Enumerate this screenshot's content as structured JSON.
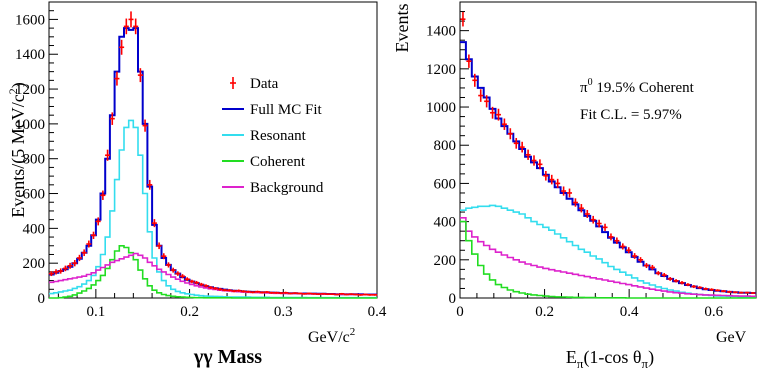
{
  "chart_data": [
    {
      "type": "line",
      "xlabel": "γγ Mass",
      "x_unit": "GeV/c",
      "x_unit_sup": "2",
      "ylabel": "Events/(5 MeV/c",
      "ylabel_sup": "2",
      "ylabel_close": ")",
      "xlim": [
        0.05,
        0.4
      ],
      "ylim": [
        0,
        1700
      ],
      "xticks": [
        {
          "v": 0.1,
          "label": "0.1"
        },
        {
          "v": 0.2,
          "label": "0.2"
        },
        {
          "v": 0.3,
          "label": "0.3"
        },
        {
          "v": 0.4,
          "label": "0.4"
        }
      ],
      "yticks": [
        {
          "v": 0,
          "label": "0"
        },
        {
          "v": 200,
          "label": "200"
        },
        {
          "v": 400,
          "label": "400"
        },
        {
          "v": 600,
          "label": "600"
        },
        {
          "v": 800,
          "label": "800"
        },
        {
          "v": 1000,
          "label": "1000"
        },
        {
          "v": 1200,
          "label": "1200"
        },
        {
          "v": 1400,
          "label": "1400"
        },
        {
          "v": 1600,
          "label": "1600"
        }
      ],
      "legend": [
        {
          "label": "Data",
          "color": "#ff0000",
          "marker": true
        },
        {
          "label": "Full MC Fit",
          "color": "#0000cc"
        },
        {
          "label": "Resonant",
          "color": "#33ddee"
        },
        {
          "label": "Coherent",
          "color": "#22dd22"
        },
        {
          "label": "Background",
          "color": "#dd22cc"
        }
      ],
      "x_edges": [
        0.05,
        0.055,
        0.06,
        0.065,
        0.07,
        0.075,
        0.08,
        0.085,
        0.09,
        0.095,
        0.1,
        0.105,
        0.11,
        0.115,
        0.12,
        0.125,
        0.13,
        0.135,
        0.14,
        0.145,
        0.15,
        0.155,
        0.16,
        0.165,
        0.17,
        0.175,
        0.18,
        0.185,
        0.19,
        0.195,
        0.2,
        0.205,
        0.21,
        0.215,
        0.22,
        0.225,
        0.23,
        0.235,
        0.24,
        0.245,
        0.25,
        0.255,
        0.26,
        0.265,
        0.27,
        0.275,
        0.28,
        0.285,
        0.29,
        0.295,
        0.3,
        0.305,
        0.31,
        0.315,
        0.32,
        0.325,
        0.33,
        0.335,
        0.34,
        0.345,
        0.35,
        0.355,
        0.36,
        0.365,
        0.37,
        0.375,
        0.38,
        0.385,
        0.39,
        0.395,
        0.4
      ],
      "series": [
        {
          "name": "Full MC Fit",
          "color": "#0000cc",
          "values": [
            135,
            145,
            155,
            165,
            180,
            200,
            225,
            260,
            300,
            360,
            450,
            600,
            800,
            1050,
            1300,
            1500,
            1550,
            1540,
            1550,
            1300,
            1000,
            640,
            420,
            300,
            230,
            190,
            160,
            140,
            120,
            105,
            95,
            85,
            75,
            68,
            62,
            56,
            52,
            48,
            44,
            42,
            40,
            38,
            36,
            35,
            34,
            33,
            32,
            31,
            30,
            29,
            28,
            27,
            27,
            26,
            26,
            25,
            25,
            24,
            24,
            23,
            23,
            22,
            22,
            22,
            21,
            21,
            21,
            20,
            20,
            20
          ]
        },
        {
          "name": "Resonant",
          "color": "#33ddee",
          "values": [
            25,
            30,
            35,
            40,
            45,
            55,
            65,
            80,
            100,
            130,
            180,
            250,
            350,
            500,
            680,
            850,
            980,
            1020,
            980,
            820,
            600,
            380,
            230,
            150,
            100,
            70,
            50,
            38,
            30,
            24,
            20,
            16,
            13,
            11,
            10,
            9,
            8,
            7,
            6,
            6,
            5,
            5,
            5,
            4,
            4,
            4,
            4,
            3,
            3,
            3,
            3,
            3,
            3,
            3,
            3,
            2,
            2,
            2,
            2,
            2,
            2,
            2,
            2,
            2,
            2,
            2,
            2,
            2,
            2,
            2
          ]
        },
        {
          "name": "Coherent",
          "color": "#22dd22",
          "values": [
            0,
            0,
            2,
            5,
            10,
            18,
            28,
            40,
            55,
            75,
            100,
            130,
            170,
            220,
            270,
            300,
            290,
            260,
            220,
            160,
            110,
            70,
            45,
            30,
            20,
            14,
            10,
            7,
            5,
            4,
            3,
            2,
            2,
            1,
            1,
            1,
            1,
            1,
            1,
            0,
            0,
            0,
            0,
            0,
            0,
            0,
            0,
            0,
            0,
            0,
            0,
            0,
            0,
            0,
            0,
            0,
            0,
            0,
            0,
            0,
            0,
            0,
            0,
            0,
            0,
            0,
            0,
            0,
            0,
            0
          ]
        },
        {
          "name": "Background",
          "color": "#dd22cc",
          "values": [
            90,
            95,
            100,
            105,
            110,
            115,
            120,
            125,
            135,
            145,
            160,
            175,
            190,
            205,
            215,
            225,
            235,
            245,
            255,
            245,
            230,
            205,
            185,
            165,
            150,
            135,
            120,
            108,
            96,
            86,
            78,
            70,
            64,
            58,
            53,
            49,
            45,
            42,
            40,
            38,
            36,
            34,
            33,
            32,
            31,
            30,
            29,
            28,
            27,
            27,
            26,
            26,
            25,
            25,
            24,
            24,
            23,
            23,
            22,
            22,
            22,
            21,
            21,
            21,
            20,
            20,
            20,
            19,
            19,
            19
          ]
        }
      ],
      "data_points": {
        "name": "Data",
        "color": "#ff0000",
        "x": [
          0.0525,
          0.0575,
          0.0625,
          0.0675,
          0.0725,
          0.0775,
          0.0825,
          0.0875,
          0.0925,
          0.0975,
          0.1025,
          0.1075,
          0.1125,
          0.1175,
          0.1225,
          0.1275,
          0.1325,
          0.1375,
          0.1425,
          0.1475,
          0.1525,
          0.1575,
          0.1625,
          0.1675,
          0.1725,
          0.1775,
          0.1825,
          0.1875,
          0.1925,
          0.1975,
          0.2025,
          0.2075,
          0.2125,
          0.2175,
          0.2225,
          0.2275,
          0.2325,
          0.2375,
          0.2425,
          0.2475,
          0.2525,
          0.2575,
          0.2625,
          0.2675,
          0.2725,
          0.2775,
          0.2825,
          0.2875,
          0.2925,
          0.2975,
          0.3025,
          0.3075,
          0.3125,
          0.3175,
          0.3225,
          0.3275,
          0.3325,
          0.3375,
          0.3425,
          0.3475,
          0.3525,
          0.3575,
          0.3625,
          0.3675,
          0.3725,
          0.3775,
          0.3825,
          0.3875,
          0.3925,
          0.3975
        ],
        "y": [
          140,
          150,
          155,
          170,
          185,
          200,
          230,
          260,
          310,
          360,
          440,
          590,
          820,
          1030,
          1260,
          1440,
          1560,
          1600,
          1560,
          1280,
          990,
          650,
          430,
          300,
          240,
          190,
          160,
          140,
          125,
          108,
          95,
          88,
          78,
          70,
          60,
          55,
          50,
          45,
          44,
          40,
          42,
          38,
          36,
          33,
          36,
          32,
          34,
          30,
          30,
          28,
          30,
          26,
          28,
          26,
          24,
          26,
          24,
          22,
          24,
          22,
          22,
          20,
          24,
          20,
          22,
          20,
          18,
          20,
          18,
          18
        ],
        "err": [
          14,
          15,
          15,
          16,
          17,
          18,
          18,
          19,
          20,
          21,
          23,
          27,
          32,
          36,
          40,
          43,
          45,
          46,
          45,
          40,
          35,
          28,
          23,
          19,
          17,
          15,
          14,
          13,
          12,
          11,
          10,
          10,
          9,
          9,
          8,
          8,
          8,
          7,
          7,
          7,
          7,
          7,
          6,
          6,
          6,
          6,
          6,
          6,
          6,
          6,
          6,
          5,
          5,
          5,
          5,
          5,
          5,
          5,
          5,
          5,
          5,
          5,
          5,
          5,
          5,
          5,
          5,
          5,
          5,
          5
        ]
      }
    },
    {
      "type": "line",
      "xlabel_main": "E",
      "xlabel_sub": "π",
      "xlabel_mid": "(1-cos θ",
      "xlabel_sub2": "π",
      "xlabel_end": ")",
      "x_unit": "GeV",
      "ylabel": "Events",
      "xlim": [
        0,
        0.7
      ],
      "ylim": [
        0,
        1550
      ],
      "xticks": [
        {
          "v": 0,
          "label": "0"
        },
        {
          "v": 0.2,
          "label": "0.2"
        },
        {
          "v": 0.4,
          "label": "0.4"
        },
        {
          "v": 0.6,
          "label": "0.6"
        }
      ],
      "yticks": [
        {
          "v": 0,
          "label": "0"
        },
        {
          "v": 200,
          "label": "200"
        },
        {
          "v": 400,
          "label": "400"
        },
        {
          "v": 600,
          "label": "600"
        },
        {
          "v": 800,
          "label": "800"
        },
        {
          "v": 1000,
          "label": "1000"
        },
        {
          "v": 1200,
          "label": "1200"
        },
        {
          "v": 1400,
          "label": "1400"
        }
      ],
      "annotation_pre": "π",
      "annotation_sup": "0",
      "annotation_rest": " 19.5% Coherent",
      "annotation2": "Fit C.L. = 5.97%",
      "x_edges": [
        0,
        0.014,
        0.028,
        0.042,
        0.056,
        0.07,
        0.084,
        0.098,
        0.112,
        0.126,
        0.14,
        0.154,
        0.168,
        0.182,
        0.196,
        0.21,
        0.224,
        0.238,
        0.252,
        0.266,
        0.28,
        0.294,
        0.308,
        0.322,
        0.336,
        0.35,
        0.364,
        0.378,
        0.392,
        0.406,
        0.42,
        0.434,
        0.448,
        0.462,
        0.476,
        0.49,
        0.504,
        0.518,
        0.532,
        0.546,
        0.56,
        0.574,
        0.588,
        0.602,
        0.616,
        0.63,
        0.644,
        0.658,
        0.672,
        0.686,
        0.7
      ],
      "series": [
        {
          "name": "Full MC Fit",
          "color": "#0000cc",
          "values": [
            1340,
            1250,
            1160,
            1100,
            1050,
            990,
            940,
            900,
            860,
            820,
            780,
            740,
            710,
            680,
            645,
            610,
            580,
            550,
            520,
            490,
            460,
            430,
            405,
            375,
            345,
            315,
            290,
            265,
            240,
            215,
            190,
            170,
            150,
            130,
            115,
            100,
            88,
            78,
            68,
            60,
            52,
            46,
            42,
            38,
            35,
            32,
            30,
            28,
            27,
            26
          ]
        },
        {
          "name": "Resonant",
          "color": "#33ddee",
          "values": [
            460,
            470,
            475,
            480,
            480,
            485,
            480,
            470,
            460,
            450,
            440,
            420,
            400,
            385,
            370,
            355,
            335,
            315,
            295,
            275,
            255,
            240,
            220,
            205,
            185,
            165,
            150,
            135,
            120,
            105,
            90,
            78,
            68,
            58,
            50,
            42,
            36,
            30,
            25,
            21,
            18,
            15,
            13,
            11,
            10,
            9,
            8,
            7,
            6,
            6
          ]
        },
        {
          "name": "Background",
          "color": "#dd22cc",
          "values": [
            420,
            350,
            320,
            295,
            275,
            255,
            240,
            225,
            212,
            200,
            188,
            178,
            170,
            162,
            155,
            148,
            142,
            136,
            130,
            124,
            118,
            112,
            106,
            100,
            94,
            88,
            82,
            76,
            70,
            64,
            58,
            52,
            46,
            41,
            36,
            32,
            28,
            25,
            22,
            20,
            18,
            16,
            15,
            14,
            13,
            12,
            11,
            10,
            10,
            9
          ]
        },
        {
          "name": "Coherent",
          "color": "#22dd22",
          "values": [
            400,
            300,
            230,
            170,
            125,
            95,
            70,
            55,
            42,
            33,
            26,
            20,
            16,
            13,
            10,
            8,
            6,
            5,
            4,
            3,
            3,
            2,
            2,
            1,
            1,
            1,
            1,
            1,
            0,
            0,
            0,
            0,
            0,
            0,
            0,
            0,
            0,
            0,
            0,
            0,
            0,
            0,
            0,
            0,
            0,
            0,
            0,
            0,
            0,
            0
          ]
        }
      ],
      "data_points": {
        "name": "Data",
        "color": "#ff0000",
        "x": [
          0.007,
          0.021,
          0.035,
          0.049,
          0.063,
          0.077,
          0.091,
          0.105,
          0.119,
          0.133,
          0.147,
          0.161,
          0.175,
          0.189,
          0.203,
          0.217,
          0.231,
          0.245,
          0.259,
          0.273,
          0.287,
          0.301,
          0.315,
          0.329,
          0.343,
          0.357,
          0.371,
          0.385,
          0.399,
          0.413,
          0.427,
          0.441,
          0.455,
          0.469,
          0.483,
          0.497,
          0.511,
          0.525,
          0.539,
          0.553,
          0.567,
          0.581,
          0.595,
          0.609,
          0.623,
          0.637,
          0.651,
          0.665,
          0.679,
          0.693
        ],
        "y": [
          1460,
          1240,
          1140,
          1060,
          1030,
          970,
          960,
          910,
          860,
          810,
          790,
          750,
          720,
          700,
          640,
          620,
          600,
          560,
          550,
          500,
          470,
          440,
          410,
          390,
          370,
          320,
          300,
          270,
          250,
          220,
          200,
          170,
          160,
          130,
          120,
          100,
          90,
          80,
          70,
          60,
          55,
          48,
          44,
          40,
          36,
          32,
          30,
          28,
          28,
          26
        ],
        "err": [
          38,
          35,
          34,
          33,
          32,
          31,
          31,
          30,
          29,
          28,
          28,
          27,
          27,
          26,
          25,
          25,
          24,
          24,
          23,
          22,
          22,
          21,
          20,
          20,
          19,
          18,
          17,
          16,
          16,
          15,
          14,
          13,
          13,
          11,
          11,
          10,
          9,
          9,
          8,
          8,
          7,
          7,
          7,
          6,
          6,
          6,
          5,
          5,
          5,
          5
        ]
      }
    }
  ]
}
